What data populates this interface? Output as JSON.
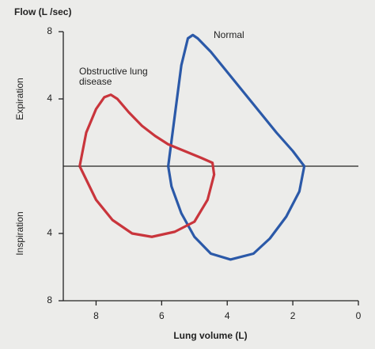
{
  "chart_data": {
    "type": "line",
    "title": "Flow (L /sec)",
    "x_label": "Lung volume (L)",
    "y_labels": [
      "Expiration",
      "Inspiration"
    ],
    "xlim": [
      9,
      0
    ],
    "xticks": [
      8,
      6,
      4,
      2,
      0
    ],
    "ylim": [
      -8,
      8
    ],
    "yticks": [
      8,
      4,
      {
        "value": -4,
        "label": "4"
      },
      {
        "value": -8,
        "label": "8"
      }
    ],
    "series": [
      {
        "name": "Normal",
        "color": "#2b59a8",
        "x": [
          5.8,
          5.6,
          5.4,
          5.2,
          5.05,
          4.9,
          4.5,
          4,
          3.5,
          3,
          2.5,
          2,
          1.65,
          1.8,
          2.2,
          2.7,
          3.2,
          3.9,
          4.5,
          5,
          5.4,
          5.7,
          5.8
        ],
        "values": [
          0,
          3,
          6,
          7.6,
          7.8,
          7.6,
          6.8,
          5.6,
          4.4,
          3.2,
          2,
          0.9,
          0,
          -1.5,
          -3,
          -4.3,
          -5.2,
          -5.55,
          -5.2,
          -4.2,
          -2.8,
          -1.2,
          0
        ]
      },
      {
        "name": "Obstructive lung disease",
        "color": "#c9353c",
        "x": [
          8.5,
          8.3,
          8,
          7.75,
          7.55,
          7.35,
          7,
          6.6,
          6.2,
          5.8,
          5.3,
          4.8,
          4.45,
          4.4,
          4.6,
          5,
          5.6,
          6.3,
          6.9,
          7.5,
          8,
          8.5
        ],
        "values": [
          0,
          2,
          3.4,
          4.1,
          4.25,
          4,
          3.2,
          2.4,
          1.8,
          1.3,
          0.9,
          0.5,
          0.2,
          -0.5,
          -2,
          -3.3,
          -3.9,
          -4.2,
          -4,
          -3.2,
          -2,
          0
        ]
      }
    ]
  }
}
